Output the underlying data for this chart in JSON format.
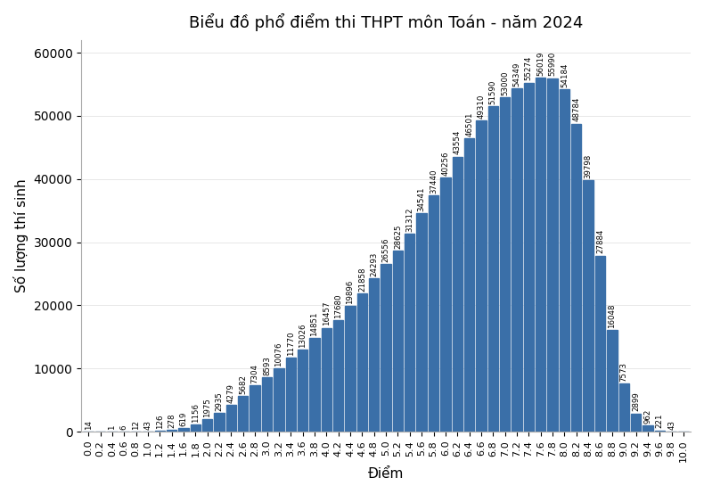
{
  "title": "Biểu đồ phổ điểm thi THPT môn Toán - năm 2024",
  "xlabel": "Điểm",
  "ylabel": "Số lượng thí sinh",
  "bar_color": "#3a6fa8",
  "categories": [
    "0.0",
    "0.2",
    "0.4",
    "0.6",
    "0.8",
    "1.0",
    "1.2",
    "1.4",
    "1.6",
    "1.8",
    "2.0",
    "2.2",
    "2.4",
    "2.6",
    "2.8",
    "3.0",
    "3.2",
    "3.4",
    "3.6",
    "3.8",
    "4.0",
    "4.2",
    "4.4",
    "4.6",
    "4.8",
    "5.0",
    "5.2",
    "5.4",
    "5.6",
    "5.8",
    "6.0",
    "6.2",
    "6.4",
    "6.6",
    "6.8",
    "7.0",
    "7.2",
    "7.4",
    "7.6",
    "7.8",
    "8.0",
    "8.2",
    "8.4",
    "8.6",
    "8.8",
    "9.0",
    "9.2",
    "9.4",
    "9.6",
    "9.8",
    "10.0"
  ],
  "values": [
    14,
    0,
    1,
    6,
    12,
    43,
    126,
    278,
    619,
    1156,
    1975,
    2935,
    4279,
    5682,
    7304,
    8593,
    10076,
    11770,
    13026,
    14851,
    16457,
    17680,
    19896,
    21858,
    24293,
    26556,
    28625,
    31312,
    34541,
    37440,
    40256,
    43554,
    46501,
    49310,
    51590,
    53000,
    54349,
    55274,
    56019,
    55990,
    54184,
    48784,
    39798,
    27884,
    16048,
    7573,
    2899,
    962,
    221,
    43,
    0
  ],
  "ylim": [
    0,
    62000
  ],
  "yticks": [
    0,
    10000,
    20000,
    30000,
    40000,
    50000,
    60000
  ],
  "bg_color": "#ffffff",
  "label_fontsize": 6.2,
  "title_fontsize": 13,
  "axis_label_fontsize": 11,
  "tick_fontsize": 8
}
